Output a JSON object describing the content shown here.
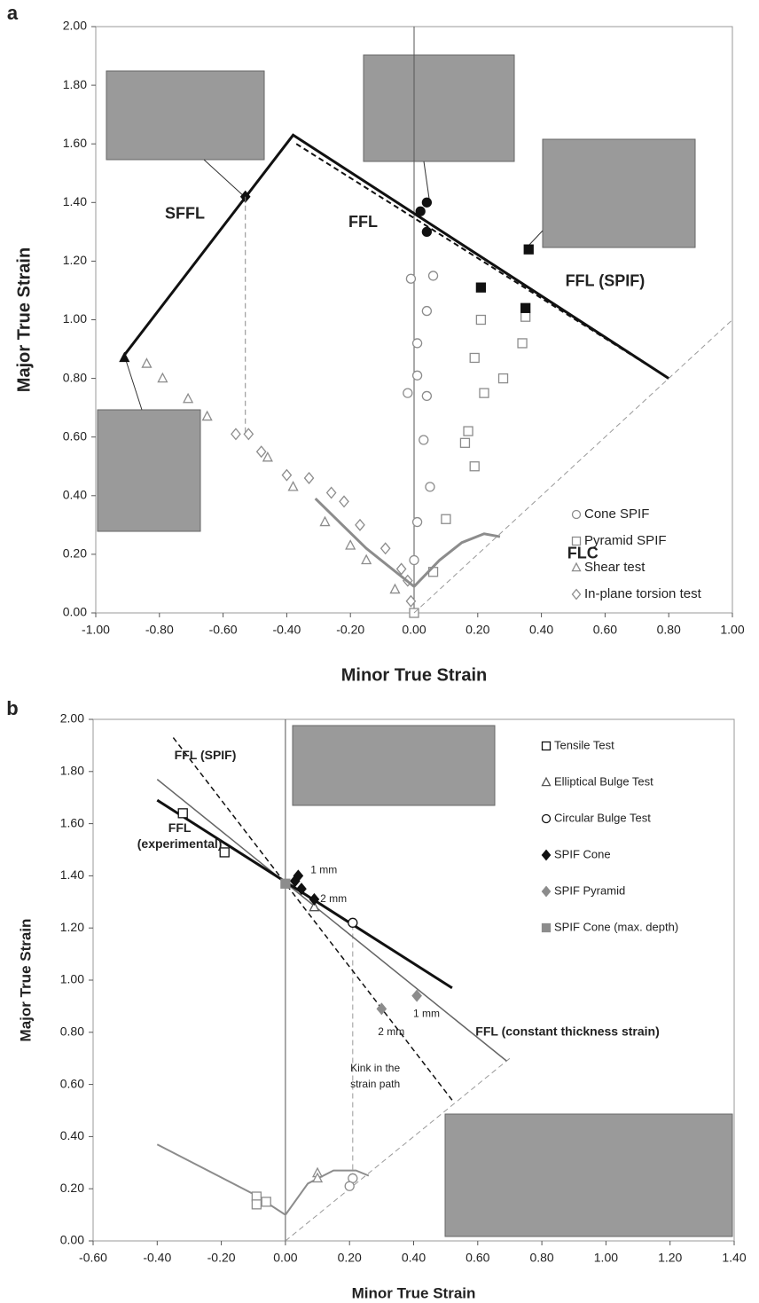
{
  "chart_data": [
    {
      "type": "scatter",
      "panel": "a",
      "x_label": "Minor True Strain",
      "y_label": "Major True Strain",
      "xlim": [
        -1,
        1
      ],
      "ylim": [
        0,
        2
      ],
      "legend": "lower right",
      "xticks": [
        {
          "value": -1,
          "label": "-1.00"
        },
        {
          "value": -0.8,
          "label": "-0.80"
        },
        {
          "value": -0.6,
          "label": "-0.60"
        },
        {
          "value": -0.4,
          "label": "-0.40"
        },
        {
          "value": -0.2,
          "label": "-0.20"
        },
        {
          "value": 0,
          "label": "0.00"
        },
        {
          "value": 0.2,
          "label": "0.20"
        },
        {
          "value": 0.4,
          "label": "0.40"
        },
        {
          "value": 0.6,
          "label": "0.60"
        },
        {
          "value": 0.8,
          "label": "0.80"
        },
        {
          "value": 1,
          "label": "1.00"
        }
      ],
      "yticks": [
        {
          "value": 0,
          "label": "0.00"
        },
        {
          "value": 0.2,
          "label": "0.20"
        },
        {
          "value": 0.4,
          "label": "0.40"
        },
        {
          "value": 0.6,
          "label": "0.60"
        },
        {
          "value": 0.8,
          "label": "0.80"
        },
        {
          "value": 1,
          "label": "1.00"
        },
        {
          "value": 1.2,
          "label": "1.20"
        },
        {
          "value": 1.4,
          "label": "1.40"
        },
        {
          "value": 1.6,
          "label": "1.60"
        },
        {
          "value": 1.8,
          "label": "1.80"
        },
        {
          "value": 2,
          "label": "2.00"
        }
      ],
      "series": [
        {
          "name": "Cone SPIF",
          "marker": "circle",
          "filled": false,
          "color": "#8c8c8c",
          "x": [
            -0.01,
            0.06,
            0.04,
            0.01,
            0.01,
            -0.02,
            0.04,
            0.03,
            0.05,
            0.01,
            0.0
          ],
          "y": [
            1.14,
            1.15,
            1.03,
            0.92,
            0.81,
            0.75,
            0.74,
            0.59,
            0.43,
            0.31,
            0.18
          ]
        },
        {
          "name": "Pyramid SPIF",
          "marker": "square",
          "filled": false,
          "color": "#8c8c8c",
          "x": [
            0.21,
            0.35,
            0.34,
            0.19,
            0.28,
            0.22,
            0.17,
            0.16,
            0.19,
            0.1,
            0.06,
            0.0
          ],
          "y": [
            1.0,
            1.01,
            0.92,
            0.87,
            0.8,
            0.75,
            0.62,
            0.58,
            0.5,
            0.32,
            0.14,
            0.0
          ]
        },
        {
          "name": "Shear test",
          "marker": "triangle",
          "filled": false,
          "color": "#8c8c8c",
          "x": [
            -0.84,
            -0.79,
            -0.71,
            -0.65,
            -0.46,
            -0.38,
            -0.28,
            -0.2,
            -0.15,
            -0.06
          ],
          "y": [
            0.85,
            0.8,
            0.73,
            0.67,
            0.53,
            0.43,
            0.31,
            0.23,
            0.18,
            0.08
          ]
        },
        {
          "name": "In-plane torsion test",
          "marker": "diamond",
          "filled": false,
          "color": "#8c8c8c",
          "x": [
            -0.56,
            -0.52,
            -0.48,
            -0.4,
            -0.33,
            -0.26,
            -0.22,
            -0.17,
            -0.09,
            -0.04,
            -0.02,
            -0.01
          ],
          "y": [
            0.61,
            0.61,
            0.55,
            0.47,
            0.46,
            0.41,
            0.38,
            0.3,
            0.22,
            0.15,
            0.11,
            0.04
          ]
        },
        {
          "marker": "circle",
          "filled": true,
          "color": "#111111",
          "x": [
            0.02,
            0.04,
            0.04
          ],
          "y": [
            1.37,
            1.4,
            1.3
          ]
        },
        {
          "marker": "square",
          "filled": true,
          "color": "#111111",
          "x": [
            0.21,
            0.35,
            0.36
          ],
          "y": [
            1.11,
            1.04,
            1.24
          ]
        },
        {
          "marker": "diamond",
          "filled": true,
          "color": "#111111",
          "x": [
            -0.53
          ],
          "y": [
            1.42
          ]
        },
        {
          "marker": "triangle",
          "filled": true,
          "color": "#111111",
          "x": [
            -0.91
          ],
          "y": [
            0.87
          ]
        },
        {
          "line": true,
          "width": 3,
          "dash": false,
          "color": "#111111",
          "x": [
            -0.91,
            -0.38,
            0.8
          ],
          "y": [
            0.88,
            1.63,
            0.8
          ]
        },
        {
          "line": true,
          "width": 2,
          "dash": true,
          "color": "#111111",
          "x": [
            -0.37,
            0.8
          ],
          "y": [
            1.6,
            0.8
          ]
        },
        {
          "line": true,
          "width": 1,
          "dash": true,
          "color": "#888888",
          "x": [
            -0.53,
            -0.53
          ],
          "y": [
            1.42,
            0.61
          ]
        },
        {
          "line": true,
          "width": 3,
          "dash": false,
          "color": "#8c8c8c",
          "x": [
            -0.31,
            -0.15,
            0.0,
            0.08,
            0.15,
            0.22,
            0.27
          ],
          "y": [
            0.39,
            0.22,
            0.09,
            0.18,
            0.24,
            0.27,
            0.26
          ]
        },
        {
          "line": true,
          "width": 1,
          "dash": true,
          "color": "#999999",
          "x": [
            0,
            1
          ],
          "y": [
            0,
            1
          ]
        }
      ],
      "annotations": [
        {
          "text": "SFFL",
          "x": -0.72,
          "y": 1.36,
          "bold": true
        },
        {
          "text": "FFL",
          "x": -0.16,
          "y": 1.33,
          "bold": true
        },
        {
          "text": "FFL (SPIF)",
          "x": 0.6,
          "y": 1.13,
          "bold": true
        },
        {
          "text": "FLC",
          "x": 0.53,
          "y": 0.2,
          "bold": true
        }
      ]
    },
    {
      "type": "scatter",
      "panel": "b",
      "x_label": "Minor True Strain",
      "y_label": "Major True Strain",
      "xlim": [
        -0.6,
        1.4
      ],
      "ylim": [
        0,
        2
      ],
      "legend": "upper right",
      "xticks": [
        {
          "value": -0.6,
          "label": "-0.60"
        },
        {
          "value": -0.4,
          "label": "-0.40"
        },
        {
          "value": -0.2,
          "label": "-0.20"
        },
        {
          "value": 0,
          "label": "0.00"
        },
        {
          "value": 0.2,
          "label": "0.20"
        },
        {
          "value": 0.4,
          "label": "0.40"
        },
        {
          "value": 0.6,
          "label": "0.60"
        },
        {
          "value": 0.8,
          "label": "0.80"
        },
        {
          "value": 1,
          "label": "1.00"
        },
        {
          "value": 1.2,
          "label": "1.20"
        },
        {
          "value": 1.4,
          "label": "1.40"
        }
      ],
      "yticks": [
        {
          "value": 0,
          "label": "0.00"
        },
        {
          "value": 0.2,
          "label": "0.20"
        },
        {
          "value": 0.4,
          "label": "0.40"
        },
        {
          "value": 0.6,
          "label": "0.60"
        },
        {
          "value": 0.8,
          "label": "0.80"
        },
        {
          "value": 1,
          "label": "1.00"
        },
        {
          "value": 1.2,
          "label": "1.20"
        },
        {
          "value": 1.4,
          "label": "1.40"
        },
        {
          "value": 1.6,
          "label": "1.60"
        },
        {
          "value": 1.8,
          "label": "1.80"
        },
        {
          "value": 2,
          "label": "2.00"
        }
      ],
      "series": [
        {
          "line": true,
          "width": 1,
          "dash": true,
          "color": "#999999",
          "x": [
            0,
            0.7
          ],
          "y": [
            0,
            0.7
          ]
        },
        {
          "line": true,
          "width": 1,
          "dash": true,
          "color": "#999999",
          "x": [
            0.21,
            0.21
          ],
          "y": [
            0.24,
            1.22
          ]
        },
        {
          "line": true,
          "width": 1.5,
          "dash": false,
          "color": "#666666",
          "x": [
            -0.4,
            0.69
          ],
          "y": [
            1.77,
            0.69
          ]
        },
        {
          "line": true,
          "width": 1.5,
          "dash": true,
          "color": "#111111",
          "x": [
            -0.35,
            0.52
          ],
          "y": [
            1.93,
            0.54
          ]
        },
        {
          "line": true,
          "width": 3,
          "dash": false,
          "color": "#111111",
          "x": [
            -0.4,
            0.52
          ],
          "y": [
            1.69,
            0.97
          ]
        },
        {
          "line": true,
          "width": 2,
          "dash": false,
          "color": "#8c8c8c",
          "x": [
            -0.4,
            -0.1,
            0.0,
            0.07,
            0.15,
            0.22,
            0.26
          ],
          "y": [
            0.37,
            0.18,
            0.1,
            0.22,
            0.27,
            0.27,
            0.25
          ]
        },
        {
          "name": "Tensile Test",
          "marker": "square",
          "filled": false,
          "color": "#111111",
          "x": [
            -0.32,
            -0.19
          ],
          "y": [
            1.64,
            1.49
          ]
        },
        {
          "name": "Elliptical Bulge Test",
          "marker": "triangle",
          "filled": false,
          "color": "#555555",
          "x": [
            0.09
          ],
          "y": [
            1.28
          ]
        },
        {
          "name": "Circular Bulge Test",
          "marker": "circle",
          "filled": false,
          "color": "#111111",
          "x": [
            0.21
          ],
          "y": [
            1.22
          ]
        },
        {
          "name": "SPIF Cone",
          "marker": "diamond",
          "filled": true,
          "color": "#111111",
          "x": [
            0.03,
            0.04,
            0.05,
            0.09
          ],
          "y": [
            1.38,
            1.4,
            1.35,
            1.31
          ]
        },
        {
          "name": "SPIF Pyramid",
          "marker": "diamond",
          "filled": true,
          "color": "#8c8c8c",
          "x": [
            0.3,
            0.41
          ],
          "y": [
            0.89,
            0.94
          ]
        },
        {
          "name": "SPIF Cone (max. depth)",
          "marker": "square",
          "filled": true,
          "color": "#8c8c8c",
          "x": [
            0.0
          ],
          "y": [
            1.37
          ]
        },
        {
          "marker": "square",
          "filled": false,
          "color": "#8c8c8c",
          "x": [
            -0.09,
            -0.09,
            -0.06
          ],
          "y": [
            0.17,
            0.14,
            0.15
          ]
        },
        {
          "marker": "triangle",
          "filled": false,
          "color": "#8c8c8c",
          "x": [
            0.1,
            0.1
          ],
          "y": [
            0.26,
            0.24
          ]
        },
        {
          "marker": "circle",
          "filled": false,
          "color": "#8c8c8c",
          "x": [
            0.21,
            0.2
          ],
          "y": [
            0.24,
            0.21
          ]
        }
      ],
      "annotations": [
        {
          "text": "FFL (SPIF)",
          "x": -0.25,
          "y": 1.86,
          "bold": true
        },
        {
          "text": "FFL",
          "x": -0.33,
          "y": 1.58,
          "bold": true
        },
        {
          "text": "(experimental)",
          "x": -0.33,
          "y": 1.52,
          "bold": true
        },
        {
          "text": "1 mm",
          "x": 0.12,
          "y": 1.42,
          "bold": false
        },
        {
          "text": "2 mm",
          "x": 0.15,
          "y": 1.31,
          "bold": false
        },
        {
          "text": "1 mm",
          "x": 0.44,
          "y": 0.87,
          "bold": false
        },
        {
          "text": "2 mm",
          "x": 0.33,
          "y": 0.8,
          "bold": false
        },
        {
          "text": "FFL (constant thickness strain)",
          "x": 0.88,
          "y": 0.8,
          "bold": true
        },
        {
          "text": "Kink in the",
          "x": 0.28,
          "y": 0.66,
          "bold": false
        },
        {
          "text": "strain path",
          "x": 0.28,
          "y": 0.6,
          "bold": false
        }
      ]
    }
  ]
}
